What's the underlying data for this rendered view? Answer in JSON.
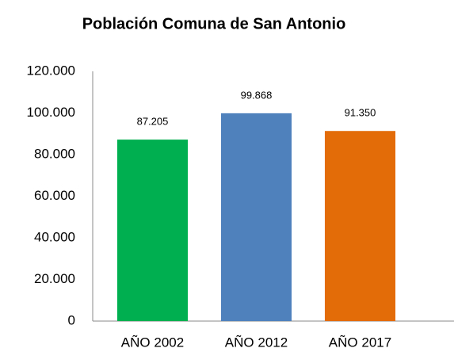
{
  "chart_data": {
    "type": "bar",
    "title": "Población Comuna de San Antonio",
    "categories": [
      "AÑO 2002",
      "AÑO 2012",
      "AÑO 2017"
    ],
    "values": [
      87205,
      99868,
      91350
    ],
    "value_labels": [
      "87.205",
      "99.868",
      "91.350"
    ],
    "colors": [
      "#00b050",
      "#4f81bd",
      "#e36c09"
    ],
    "ylim": [
      0,
      120000
    ],
    "yticks": [
      0,
      {
        "value": 20000,
        "label": "20.000"
      },
      {
        "value": 40000,
        "label": "40.000"
      },
      {
        "value": 60000,
        "label": "60.000"
      },
      {
        "value": 80000,
        "label": "80.000"
      },
      {
        "value": 100000,
        "label": "100.000"
      },
      {
        "value": 120000,
        "label": "120.000"
      }
    ],
    "grid": false
  }
}
